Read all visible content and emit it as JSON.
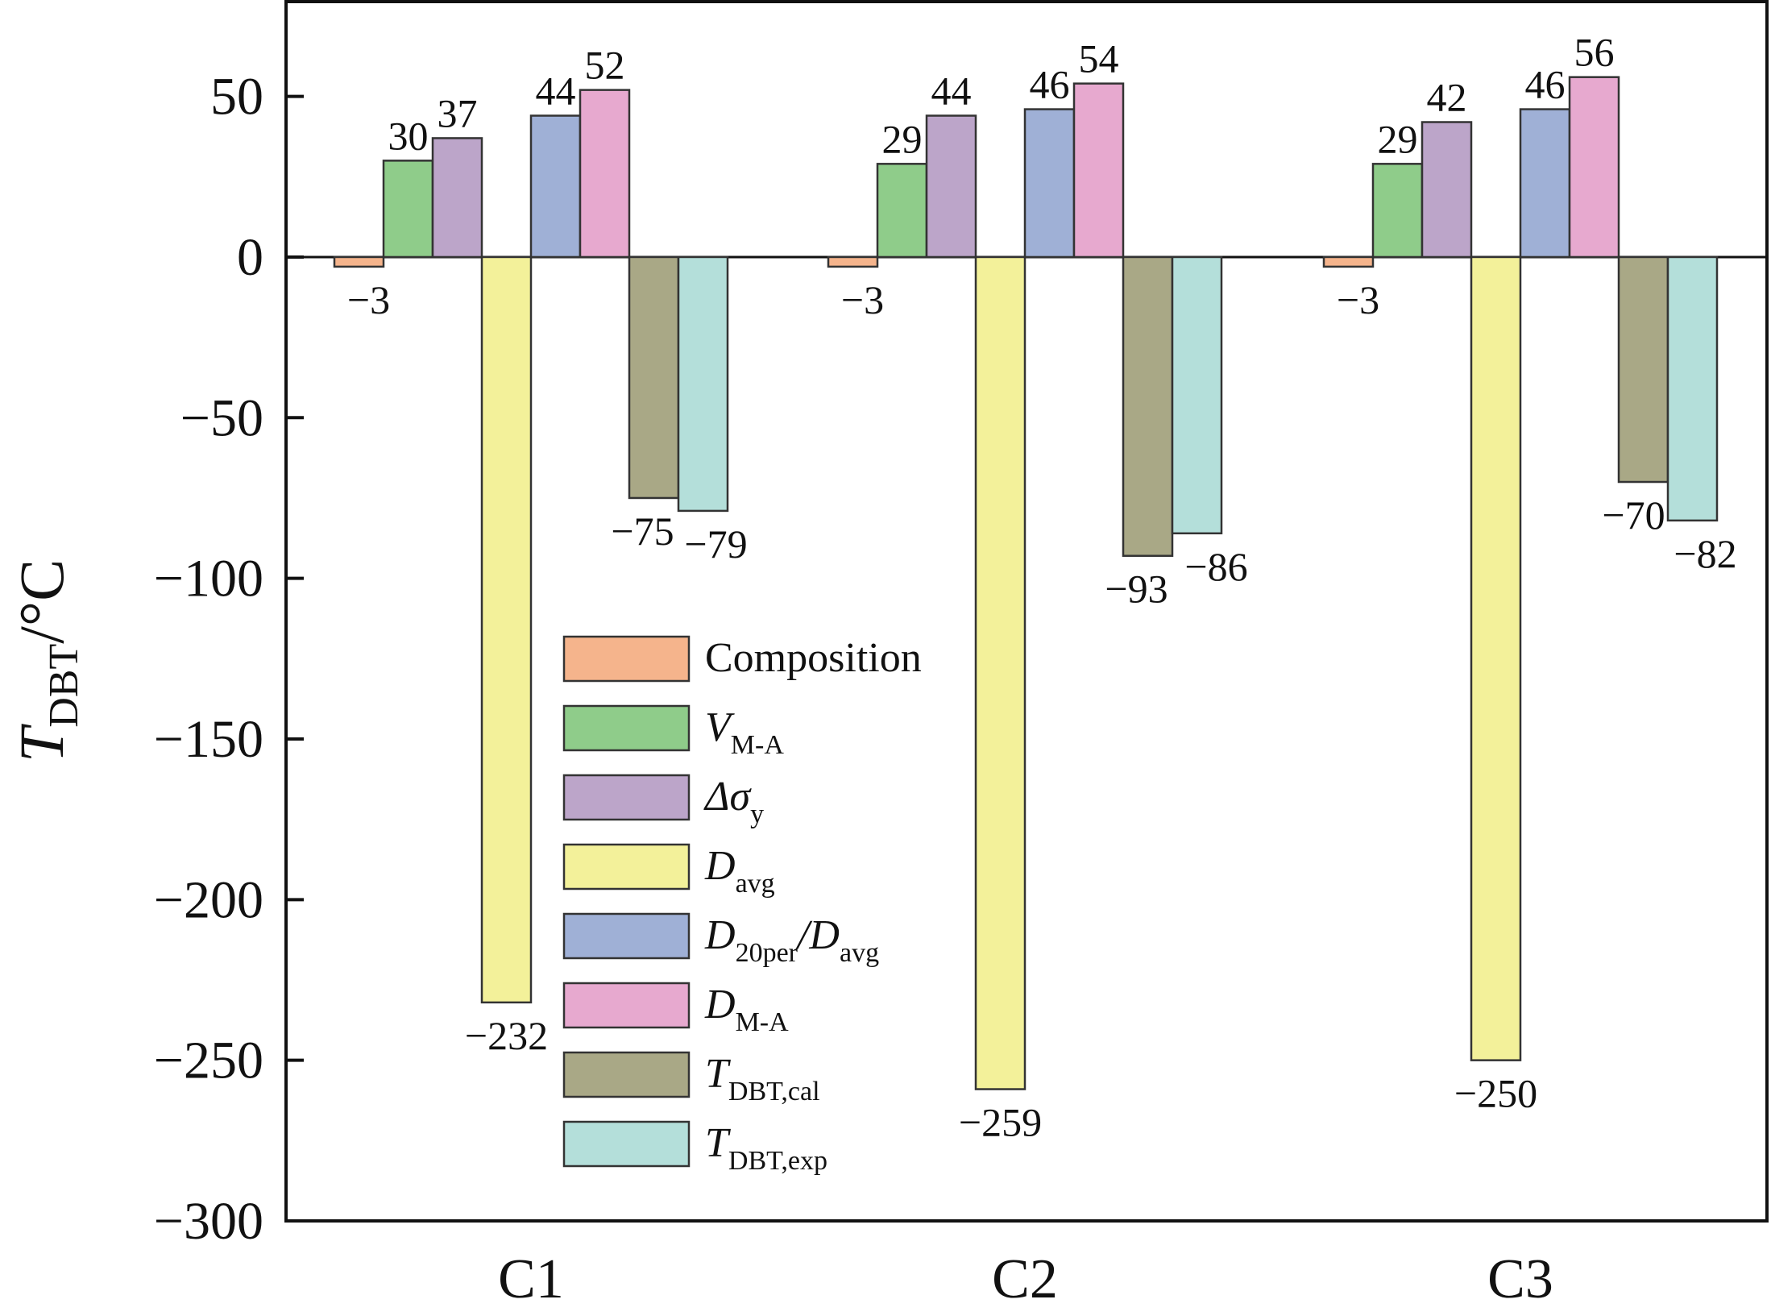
{
  "chart_data": {
    "type": "bar",
    "categories": [
      "C1",
      "C2",
      "C3"
    ],
    "ylabel": {
      "main": "T",
      "sub": "DBT",
      "unit": "/°C"
    },
    "ylim": [
      -300,
      80
    ],
    "yticks": [
      {
        "value": 50,
        "label": "50"
      },
      {
        "value": 0,
        "label": "0"
      },
      {
        "value": -50,
        "label": "−50"
      },
      {
        "value": -100,
        "label": "−100"
      },
      {
        "value": -150,
        "label": "−150"
      },
      {
        "value": -200,
        "label": "−200"
      },
      {
        "value": -250,
        "label": "−250"
      },
      {
        "value": -300,
        "label": "−300"
      }
    ],
    "legend_position": "lower-center",
    "series": [
      {
        "key": "composition",
        "legend": {
          "main": "Composition",
          "sub": "",
          "rest": ""
        },
        "color": "#f5b48c",
        "values": [
          -3,
          -3,
          -3
        ],
        "labels": [
          "−3",
          "−3",
          "−3"
        ]
      },
      {
        "key": "v_ma",
        "legend": {
          "main": "V",
          "sub": "M-A",
          "rest": ""
        },
        "color": "#8fcc8a",
        "values": [
          30,
          29,
          29
        ],
        "labels": [
          "30",
          "29",
          "29"
        ]
      },
      {
        "key": "delta_sigma_y",
        "legend": {
          "main": "Δσ",
          "sub": "y",
          "rest": ""
        },
        "color": "#bca5c9",
        "values": [
          37,
          44,
          42
        ],
        "labels": [
          "37",
          "44",
          "42"
        ]
      },
      {
        "key": "d_avg",
        "legend": {
          "main": "D",
          "sub": "avg",
          "rest": ""
        },
        "color": "#f3f19a",
        "values": [
          -232,
          -259,
          -250
        ],
        "labels": [
          "−232",
          "−259",
          "−250"
        ]
      },
      {
        "key": "d20per_davg",
        "legend": {
          "main": "D",
          "sub": "20per",
          "rest": "/D",
          "sub2": "avg"
        },
        "color": "#9fb0d6",
        "values": [
          44,
          46,
          46
        ],
        "labels": [
          "44",
          "46",
          "46"
        ]
      },
      {
        "key": "d_ma",
        "legend": {
          "main": "D",
          "sub": "M-A",
          "rest": ""
        },
        "color": "#e7a9cf",
        "values": [
          52,
          54,
          56
        ],
        "labels": [
          "52",
          "54",
          "56"
        ]
      },
      {
        "key": "tdbt_cal",
        "legend": {
          "main": "T",
          "sub": "DBT,cal",
          "rest": ""
        },
        "color": "#a9a886",
        "values": [
          -75,
          -93,
          -70
        ],
        "labels": [
          "−75",
          "−93",
          "−70"
        ]
      },
      {
        "key": "tdbt_exp",
        "legend": {
          "main": "T",
          "sub": "DBT,exp",
          "rest": ""
        },
        "color": "#b4dfda",
        "values": [
          -79,
          -86,
          -82
        ],
        "labels": [
          "−79",
          "−86",
          "−82"
        ]
      }
    ]
  }
}
